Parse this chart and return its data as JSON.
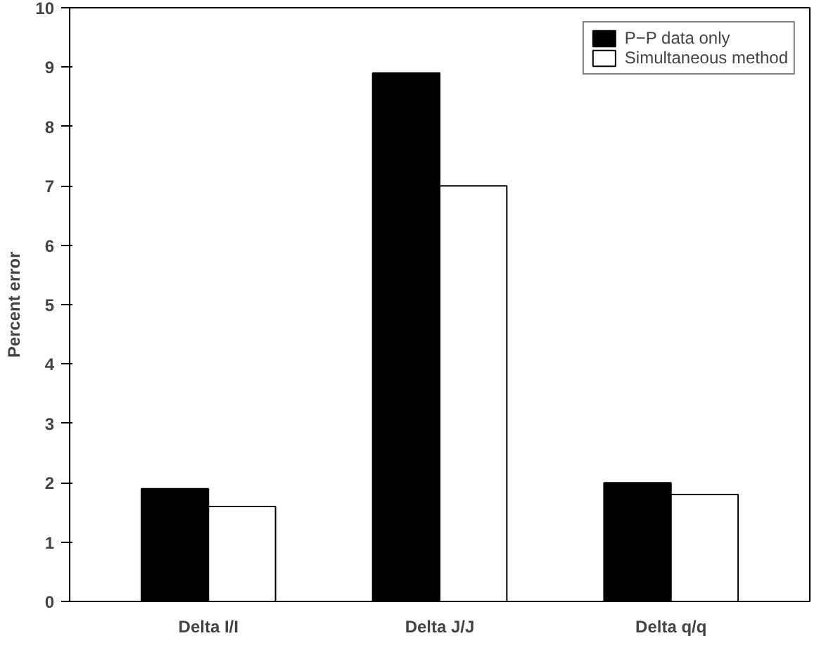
{
  "chart_data": {
    "type": "bar",
    "ylabel": "Percent error",
    "categories": [
      "Delta I/I",
      "Delta J/J",
      "Delta q/q"
    ],
    "series": [
      {
        "name": "P−P data only",
        "color": "#000000",
        "values": [
          1.9,
          8.9,
          2.0
        ]
      },
      {
        "name": "Simultaneous method",
        "color": "#ffffff",
        "values": [
          1.6,
          7.0,
          1.8
        ]
      }
    ],
    "ylim": [
      0,
      10
    ],
    "yticks": [
      0,
      1,
      2,
      3,
      4,
      5,
      6,
      7,
      8,
      9,
      10
    ],
    "grid": false,
    "legend": "top right"
  }
}
